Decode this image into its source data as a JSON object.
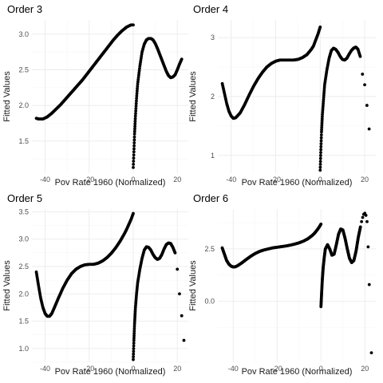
{
  "chart_data": [
    {
      "type": "scatter",
      "title": "Order 3",
      "xlabel": "Pov Rate 1960 (Normalized)",
      "ylabel": "Fitted Values",
      "xlim": [
        -46,
        25
      ],
      "ylim": [
        1.05,
        3.2
      ],
      "x_ticks": [
        -40,
        -20,
        0,
        20
      ],
      "y_ticks": [
        1.5,
        2.0,
        2.5,
        3.0
      ],
      "x_tick_labels": [
        "-40",
        "-20",
        "0",
        "20"
      ],
      "y_tick_labels": [
        "1.5",
        "2.0",
        "2.5",
        "3.0"
      ],
      "grid": true,
      "point_color": "#000000",
      "series": [
        {
          "x": [
            -44,
            -43,
            -41,
            -39,
            -37,
            -35,
            -33,
            -31,
            -29,
            -27,
            -25,
            -23,
            -21,
            -19,
            -17,
            -15,
            -13,
            -11,
            -9,
            -7,
            -5,
            -3,
            -1,
            0
          ],
          "y": [
            1.82,
            1.81,
            1.81,
            1.84,
            1.89,
            1.95,
            2.01,
            2.08,
            2.15,
            2.22,
            2.29,
            2.36,
            2.44,
            2.52,
            2.6,
            2.68,
            2.76,
            2.84,
            2.92,
            2.99,
            3.05,
            3.1,
            3.13,
            3.13
          ]
        },
        {
          "x": [
            0,
            0.3,
            0.6,
            1,
            1.5,
            2,
            3,
            4,
            5,
            6,
            7,
            8,
            9,
            10,
            11,
            12,
            13,
            14,
            15,
            16,
            17,
            18,
            19,
            20,
            21,
            22
          ],
          "y": [
            1.13,
            1.35,
            1.6,
            1.85,
            2.1,
            2.3,
            2.55,
            2.75,
            2.86,
            2.92,
            2.94,
            2.94,
            2.92,
            2.87,
            2.8,
            2.72,
            2.64,
            2.56,
            2.48,
            2.42,
            2.39,
            2.4,
            2.43,
            2.5,
            2.58,
            2.65
          ]
        }
      ]
    },
    {
      "type": "scatter",
      "title": "Order 4",
      "xlabel": "Pov Rate 1960 (Normalized)",
      "ylabel": "Fitted Values",
      "xlim": [
        -46,
        25
      ],
      "ylim": [
        0.7,
        3.3
      ],
      "x_ticks": [
        -40,
        -20,
        0,
        20
      ],
      "y_ticks": [
        1,
        2,
        3
      ],
      "x_tick_labels": [
        "-40",
        "-20",
        "0",
        "20"
      ],
      "y_tick_labels": [
        "1",
        "2",
        "3"
      ],
      "grid": true,
      "point_color": "#000000",
      "series": [
        {
          "x": [
            -44,
            -43,
            -42,
            -41,
            -40,
            -39,
            -38,
            -36,
            -34,
            -32,
            -30,
            -28,
            -26,
            -24,
            -22,
            -20,
            -18,
            -16,
            -14,
            -12,
            -10,
            -8,
            -6,
            -4,
            -3,
            -2,
            -1,
            0
          ],
          "y": [
            2.22,
            2.05,
            1.88,
            1.75,
            1.67,
            1.63,
            1.64,
            1.72,
            1.86,
            2.02,
            2.17,
            2.3,
            2.41,
            2.5,
            2.56,
            2.6,
            2.62,
            2.62,
            2.62,
            2.62,
            2.63,
            2.66,
            2.71,
            2.8,
            2.86,
            2.96,
            3.06,
            3.18
          ]
        },
        {
          "x": [
            0,
            0.3,
            0.6,
            1,
            1.5,
            2,
            3,
            4,
            5,
            6,
            7,
            8,
            9,
            10,
            11,
            12,
            13,
            14,
            15,
            16,
            17,
            18
          ],
          "y": [
            0.75,
            1.1,
            1.4,
            1.7,
            1.95,
            2.2,
            2.45,
            2.65,
            2.78,
            2.82,
            2.8,
            2.75,
            2.68,
            2.63,
            2.62,
            2.65,
            2.72,
            2.78,
            2.82,
            2.84,
            2.8,
            2.68
          ]
        },
        {
          "x": [
            19,
            20,
            21,
            22
          ],
          "y": [
            2.38,
            2.2,
            1.85,
            1.45
          ]
        }
      ]
    },
    {
      "type": "scatter",
      "title": "Order 5",
      "xlabel": "Pov Rate 1960 (Normalized)",
      "ylabel": "Fitted Values",
      "xlim": [
        -46,
        25
      ],
      "ylim": [
        0.75,
        3.55
      ],
      "x_ticks": [
        -40,
        -20,
        0,
        20
      ],
      "y_ticks": [
        1.0,
        1.5,
        2.0,
        2.5,
        3.0,
        3.5
      ],
      "x_tick_labels": [
        "-40",
        "-20",
        "0",
        "20"
      ],
      "y_tick_labels": [
        "1.0",
        "1.5",
        "2.0",
        "2.5",
        "3.0",
        "3.5"
      ],
      "grid": true,
      "point_color": "#000000",
      "series": [
        {
          "x": [
            -44,
            -43,
            -42,
            -41,
            -40,
            -39,
            -38,
            -37,
            -36,
            -34,
            -32,
            -30,
            -28,
            -26,
            -24,
            -22,
            -20,
            -18,
            -16,
            -14,
            -12,
            -10,
            -8,
            -6,
            -4,
            -3,
            -2,
            -1,
            0
          ],
          "y": [
            2.4,
            2.15,
            1.92,
            1.75,
            1.64,
            1.59,
            1.59,
            1.64,
            1.73,
            1.92,
            2.1,
            2.25,
            2.37,
            2.45,
            2.5,
            2.53,
            2.54,
            2.54,
            2.56,
            2.6,
            2.66,
            2.74,
            2.84,
            2.96,
            3.1,
            3.18,
            3.27,
            3.36,
            3.47
          ]
        },
        {
          "x": [
            0,
            0.3,
            0.6,
            1,
            1.5,
            2,
            3,
            4,
            5,
            6,
            7,
            8,
            9,
            10,
            11,
            12,
            13,
            14,
            15,
            16,
            17,
            18,
            19
          ],
          "y": [
            0.8,
            1.15,
            1.45,
            1.75,
            2.0,
            2.2,
            2.45,
            2.65,
            2.8,
            2.86,
            2.85,
            2.8,
            2.72,
            2.66,
            2.63,
            2.65,
            2.72,
            2.82,
            2.9,
            2.93,
            2.92,
            2.85,
            2.75
          ]
        },
        {
          "x": [
            20,
            21,
            22,
            23
          ],
          "y": [
            2.45,
            2.0,
            1.6,
            1.15
          ]
        }
      ]
    },
    {
      "type": "scatter",
      "title": "Order 6",
      "xlabel": "Pov Rate 1960 (Normalized)",
      "ylabel": "Fitted Values",
      "xlim": [
        -47,
        25
      ],
      "ylim": [
        -2.9,
        4.4
      ],
      "x_ticks": [
        -40,
        -20,
        0,
        20
      ],
      "y_ticks": [
        0.0,
        2.5
      ],
      "x_tick_labels": [
        "-40",
        "-20",
        "0",
        "20"
      ],
      "y_tick_labels": [
        "0.0",
        "2.5"
      ],
      "grid": true,
      "point_color": "#000000",
      "series": [
        {
          "x": [
            -45,
            -44,
            -43,
            -42,
            -41,
            -40,
            -39,
            -38,
            -36,
            -34,
            -32,
            -30,
            -28,
            -26,
            -24,
            -22,
            -20,
            -18,
            -16,
            -14,
            -12,
            -10,
            -8,
            -6,
            -4,
            -3,
            -2,
            -1,
            0
          ],
          "y": [
            2.55,
            2.25,
            1.95,
            1.78,
            1.68,
            1.64,
            1.65,
            1.7,
            1.84,
            2.0,
            2.15,
            2.28,
            2.38,
            2.45,
            2.5,
            2.55,
            2.58,
            2.61,
            2.64,
            2.68,
            2.73,
            2.79,
            2.87,
            2.98,
            3.14,
            3.24,
            3.37,
            3.51,
            3.68
          ]
        },
        {
          "x": [
            0,
            0.3,
            0.6,
            1,
            1.5,
            2,
            3,
            4,
            5,
            6,
            7,
            8,
            9,
            10,
            11,
            12,
            13,
            14,
            15,
            16,
            17,
            18
          ],
          "y": [
            -0.25,
            0.4,
            1.0,
            1.6,
            2.1,
            2.5,
            2.7,
            2.5,
            2.2,
            2.25,
            2.7,
            3.2,
            3.45,
            3.4,
            3.0,
            2.5,
            2.05,
            1.85,
            1.95,
            2.4,
            3.05,
            3.55
          ]
        },
        {
          "x": [
            18.5,
            19,
            19.5,
            20,
            20.5,
            21,
            21.5,
            22,
            23
          ],
          "y": [
            3.8,
            4.0,
            4.15,
            4.2,
            4.1,
            3.8,
            2.6,
            0.8,
            -2.45
          ]
        }
      ]
    }
  ]
}
